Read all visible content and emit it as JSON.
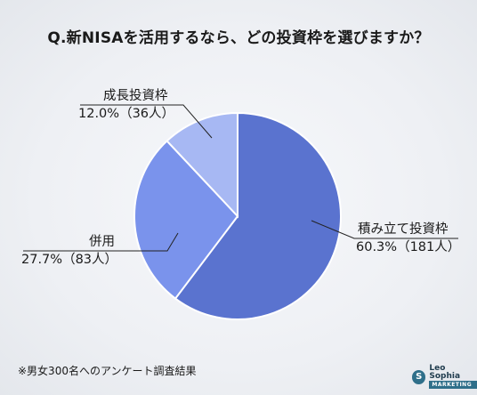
{
  "title": "Q.新NISAを活用するなら、どの投資枠を選びますか？",
  "note": "※男女300名へのアンケート調査結果",
  "logo": {
    "mark": "S",
    "name": "Leo Sophia",
    "sub": "MARKETING"
  },
  "chart_data": {
    "type": "pie",
    "title": "Q.新NISAを活用するなら、どの投資枠を選びますか？",
    "slices": [
      {
        "label": "積み立て投資枠",
        "value_text": "60.3%（181人）",
        "percent": 60.3,
        "count": 181,
        "color": "#5a73cf"
      },
      {
        "label": "併用",
        "value_text": "27.7%（83人）",
        "percent": 27.7,
        "count": 83,
        "color": "#7a93ec"
      },
      {
        "label": "成長投資枠",
        "value_text": "12.0%（36人）",
        "percent": 12.0,
        "count": 36,
        "color": "#a7b8f3"
      }
    ]
  }
}
